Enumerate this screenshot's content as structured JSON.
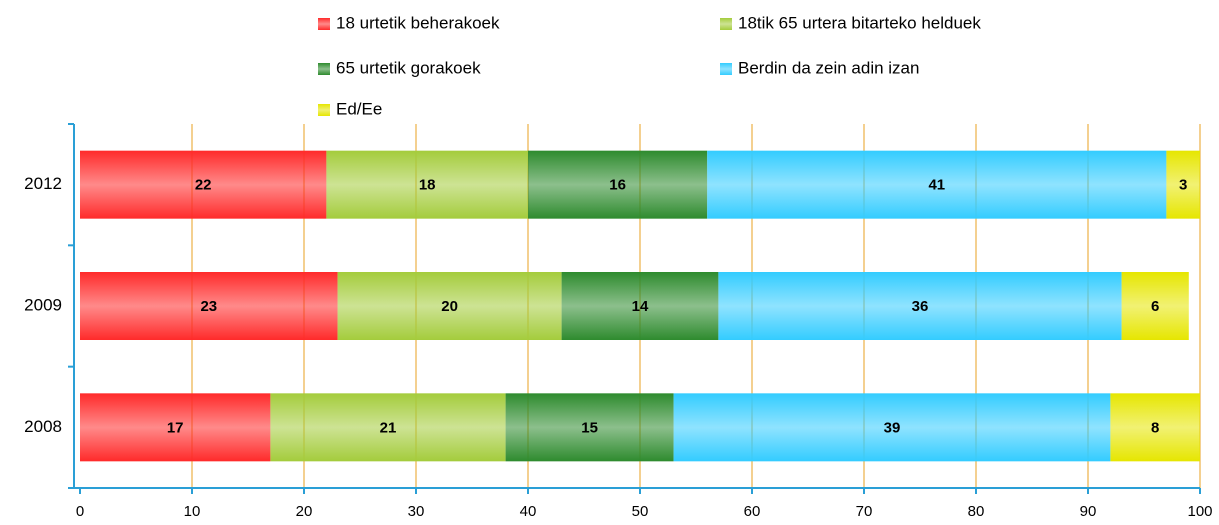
{
  "chart_data": {
    "type": "stacked-barh",
    "categories": [
      "2012",
      "2009",
      "2008"
    ],
    "series": [
      {
        "name": "18 urtetik beherakoek",
        "color": "#ff2a2a",
        "values": [
          22,
          23,
          17
        ]
      },
      {
        "name": "18tik 65 urtera bitarteko helduek",
        "color": "#a4cc3c",
        "values": [
          18,
          20,
          21
        ]
      },
      {
        "name": "65 urtetik gorakoek",
        "color": "#2e8b2e",
        "values": [
          16,
          14,
          15
        ]
      },
      {
        "name": "Berdin da zein adin izan",
        "color": "#33ccff",
        "values": [
          41,
          36,
          39
        ]
      },
      {
        "name": "Ed/Ee",
        "color": "#e6e600",
        "values": [
          3,
          6,
          8
        ]
      }
    ],
    "xlim": [
      0,
      100
    ],
    "xticks": [
      0,
      10,
      20,
      30,
      40,
      50,
      60,
      70,
      80,
      90,
      100
    ],
    "grid": true,
    "legend": "top"
  }
}
